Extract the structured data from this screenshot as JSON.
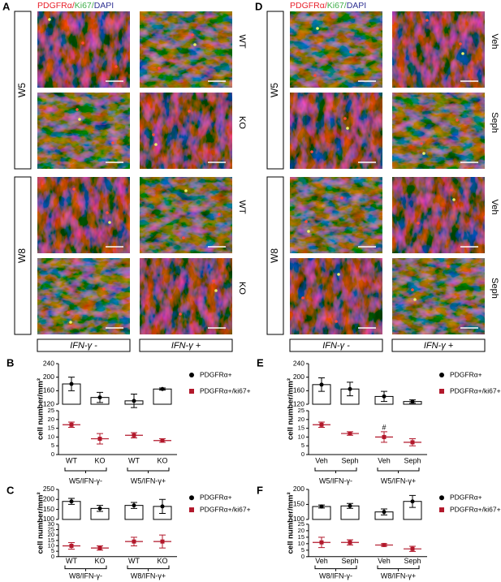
{
  "images": [
    {
      "letter": "A",
      "stain": [
        {
          "text": "PDGFRα/",
          "color": "#e8202a"
        },
        {
          "text": "Ki67/",
          "color": "#3fae49"
        },
        {
          "text": "DAPI",
          "color": "#2e3192"
        }
      ],
      "groups": [
        "W5",
        "W8"
      ],
      "rows": [
        "WT",
        "KO",
        "WT",
        "KO"
      ],
      "conditions": [
        "IFN-γ -",
        "IFN-γ +"
      ]
    },
    {
      "letter": "D",
      "stain": [
        {
          "text": "PDGFRα/",
          "color": "#e8202a"
        },
        {
          "text": "Ki67/",
          "color": "#3fae49"
        },
        {
          "text": "DAPI",
          "color": "#2e3192"
        }
      ],
      "groups": [
        "W5",
        "W8"
      ],
      "rows": [
        "Veh",
        "Seph",
        "Veh",
        "Seph"
      ],
      "conditions": [
        "IFN-γ -",
        "IFN-γ +"
      ]
    }
  ],
  "chart_data": [
    {
      "type": "bar",
      "letter": "B",
      "ylabel": "cell number/mm²",
      "categories": [
        "WT",
        "KO",
        "WT",
        "KO"
      ],
      "groups": [
        "W5/IFN-γ-",
        "W5/IFN-γ+"
      ],
      "ylim": [
        120,
        240
      ],
      "yticks": [
        120,
        160,
        200,
        240
      ],
      "y2lim": [
        0,
        25
      ],
      "y2ticks": [
        0,
        5,
        10,
        15,
        20,
        25
      ],
      "series": [
        {
          "name": "PDGFRα+",
          "color": "#000000",
          "values": [
            180,
            140,
            130,
            165
          ],
          "errors": [
            20,
            15,
            20,
            3
          ]
        },
        {
          "name": "PDGFRα+/ki67+",
          "color": "#b2182b",
          "axis": "y2",
          "values": [
            17,
            9,
            11,
            8
          ],
          "errors": [
            1.5,
            3,
            1.5,
            1
          ]
        }
      ]
    },
    {
      "type": "bar",
      "letter": "C",
      "ylabel": "cell number/mm²",
      "categories": [
        "WT",
        "KO",
        "WT",
        "KO"
      ],
      "groups": [
        "W8/IFN-γ-",
        "W8/IFN-γ+"
      ],
      "ylim": [
        100,
        250
      ],
      "yticks": [
        100,
        150,
        200,
        250
      ],
      "y2lim": [
        0,
        30
      ],
      "y2ticks": [
        0,
        5,
        10,
        15,
        20,
        25,
        30
      ],
      "series": [
        {
          "name": "PDGFRα+",
          "color": "#000000",
          "values": [
            190,
            155,
            170,
            165
          ],
          "errors": [
            15,
            15,
            15,
            35
          ]
        },
        {
          "name": "PDGFRα+/ki67+",
          "color": "#b2182b",
          "axis": "y2",
          "values": [
            10,
            8,
            14,
            14
          ],
          "errors": [
            3,
            2,
            4,
            6
          ]
        }
      ]
    },
    {
      "type": "bar",
      "letter": "E",
      "ylabel": "cell number/mm²",
      "categories": [
        "Veh",
        "Seph",
        "Veh",
        "Seph"
      ],
      "groups": [
        "W5/IFN-γ-",
        "W5/IFN-γ+"
      ],
      "ylim": [
        120,
        240
      ],
      "yticks": [
        120,
        160,
        200,
        240
      ],
      "y2lim": [
        0,
        25
      ],
      "y2ticks": [
        0,
        5,
        10,
        15,
        20,
        25
      ],
      "annotation": "#",
      "series": [
        {
          "name": "PDGFRα+",
          "color": "#000000",
          "values": [
            178,
            165,
            143,
            128
          ],
          "errors": [
            20,
            20,
            15,
            5
          ]
        },
        {
          "name": "PDGFRα+/ki67+",
          "color": "#b2182b",
          "axis": "y2",
          "values": [
            17,
            12,
            10,
            7
          ],
          "errors": [
            1.5,
            1,
            3,
            2
          ]
        }
      ]
    },
    {
      "type": "bar",
      "letter": "F",
      "ylabel": "cell number/mm²",
      "categories": [
        "Veh",
        "Seph",
        "Veh",
        "Seph"
      ],
      "groups": [
        "W8/IFN-γ-",
        "W8/IFN-γ+"
      ],
      "ylim": [
        100,
        200
      ],
      "yticks": [
        100,
        150,
        200
      ],
      "y2lim": [
        0,
        25
      ],
      "y2ticks": [
        0,
        5,
        10,
        15,
        20,
        25
      ],
      "series": [
        {
          "name": "PDGFRα+",
          "color": "#000000",
          "values": [
            143,
            145,
            125,
            160
          ],
          "errors": [
            5,
            8,
            10,
            20
          ]
        },
        {
          "name": "PDGFRα+/ki67+",
          "color": "#b2182b",
          "axis": "y2",
          "values": [
            11,
            11,
            9,
            6
          ],
          "errors": [
            4,
            2,
            1,
            2
          ]
        }
      ]
    }
  ]
}
